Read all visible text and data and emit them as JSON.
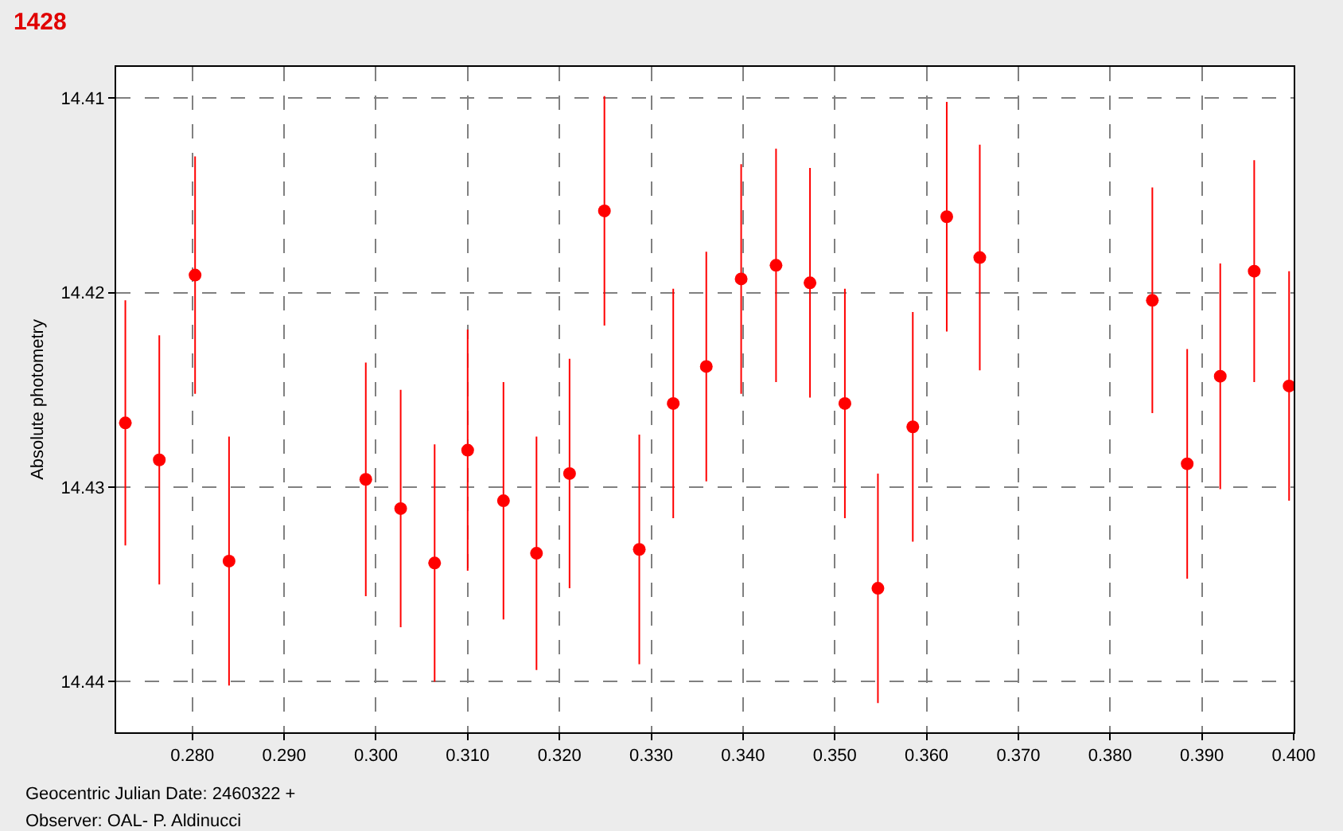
{
  "chart_data": {
    "type": "scatter",
    "title": "1428",
    "xlabel": "Geocentric Julian Date: 2460322 +",
    "ylabel": "Absolute photometry",
    "annotations": [
      "Observer: OAL- P. Aldinucci"
    ],
    "x": [
      0.2727,
      0.2764,
      0.2803,
      0.284,
      0.2989,
      0.3027,
      0.3064,
      0.31,
      0.3139,
      0.3175,
      0.3211,
      0.3249,
      0.3287,
      0.3324,
      0.336,
      0.3398,
      0.3436,
      0.3473,
      0.3511,
      0.3547,
      0.3585,
      0.3622,
      0.3658,
      0.3846,
      0.3884,
      0.392,
      0.3957,
      0.3995
    ],
    "series": [
      {
        "color": "#ff0000",
        "values": [
          14.4267,
          14.4286,
          14.4191,
          14.4338,
          14.4296,
          14.4311,
          14.4339,
          14.4281,
          14.4307,
          14.4334,
          14.4293,
          14.4158,
          14.4332,
          14.4257,
          14.4238,
          14.4193,
          14.4186,
          14.4195,
          14.4257,
          14.4352,
          14.4269,
          14.4161,
          14.4182,
          14.4204,
          14.4288,
          14.4243,
          14.4189,
          14.4248
        ],
        "errors": [
          0.0063,
          0.0064,
          0.0061,
          0.0064,
          0.006,
          0.0061,
          0.0061,
          0.0062,
          0.0061,
          0.006,
          0.0059,
          0.0059,
          0.0059,
          0.0059,
          0.0059,
          0.0059,
          0.006,
          0.0059,
          0.0059,
          0.0059,
          0.0059,
          0.0059,
          0.0058,
          0.0058,
          0.0059,
          0.0058,
          0.0057,
          0.0059
        ]
      }
    ],
    "xlim": [
      0.2717,
      0.4
    ],
    "xticks": [
      {
        "value": 0.28,
        "label": "0.280"
      },
      {
        "value": 0.29,
        "label": "0.290"
      },
      {
        "value": 0.3,
        "label": "0.300"
      },
      {
        "value": 0.31,
        "label": "0.310"
      },
      {
        "value": 0.32,
        "label": "0.320"
      },
      {
        "value": 0.33,
        "label": "0.330"
      },
      {
        "value": 0.34,
        "label": "0.340"
      },
      {
        "value": 0.35,
        "label": "0.350"
      },
      {
        "value": 0.36,
        "label": "0.360"
      },
      {
        "value": 0.37,
        "label": "0.370"
      },
      {
        "value": 0.38,
        "label": "0.380"
      },
      {
        "value": 0.39,
        "label": "0.390"
      },
      {
        "value": 0.4,
        "label": "0.400"
      }
    ],
    "ylim": [
      14.4426,
      14.4084
    ],
    "yticks": [
      14.41,
      14.42,
      14.43,
      14.44
    ],
    "grid": true,
    "marker": "circle"
  }
}
